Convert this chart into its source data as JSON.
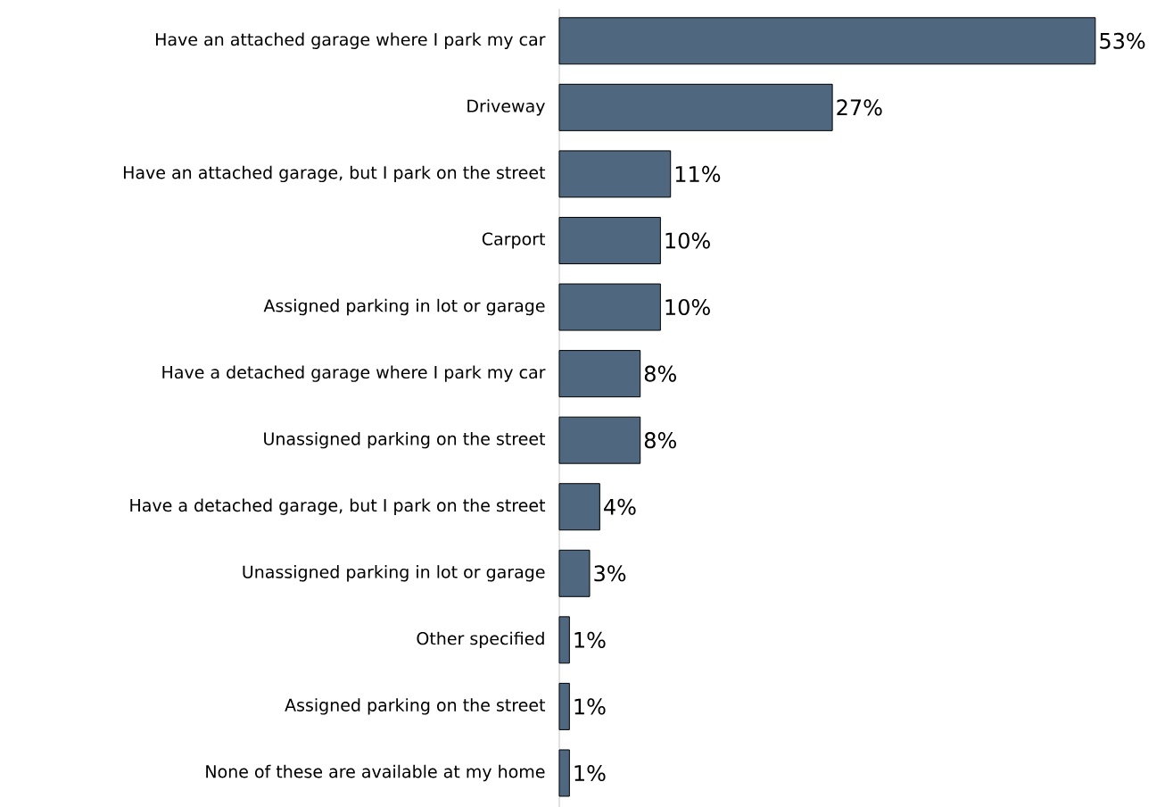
{
  "chart_data": {
    "type": "bar",
    "orientation": "horizontal",
    "color": "#4f6880",
    "categories": [
      "Have an attached garage where I park my car",
      "Driveway",
      "Have an attached garage, but I park on the street",
      "Carport",
      "Assigned parking in lot or garage",
      "Have a detached garage where I park my car",
      "Unassigned parking on the street",
      "Have a detached garage, but I park on the street",
      "Unassigned parking in lot or garage",
      "Other specified",
      "Assigned parking on the street",
      "None of these are available at my home"
    ],
    "values": [
      53,
      27,
      11,
      10,
      10,
      8,
      8,
      4,
      3,
      1,
      1,
      1
    ],
    "value_labels": [
      "53%",
      "27%",
      "11%",
      "10%",
      "10%",
      "8%",
      "8%",
      "4%",
      "3%",
      "1%",
      "1%",
      "1%"
    ]
  }
}
